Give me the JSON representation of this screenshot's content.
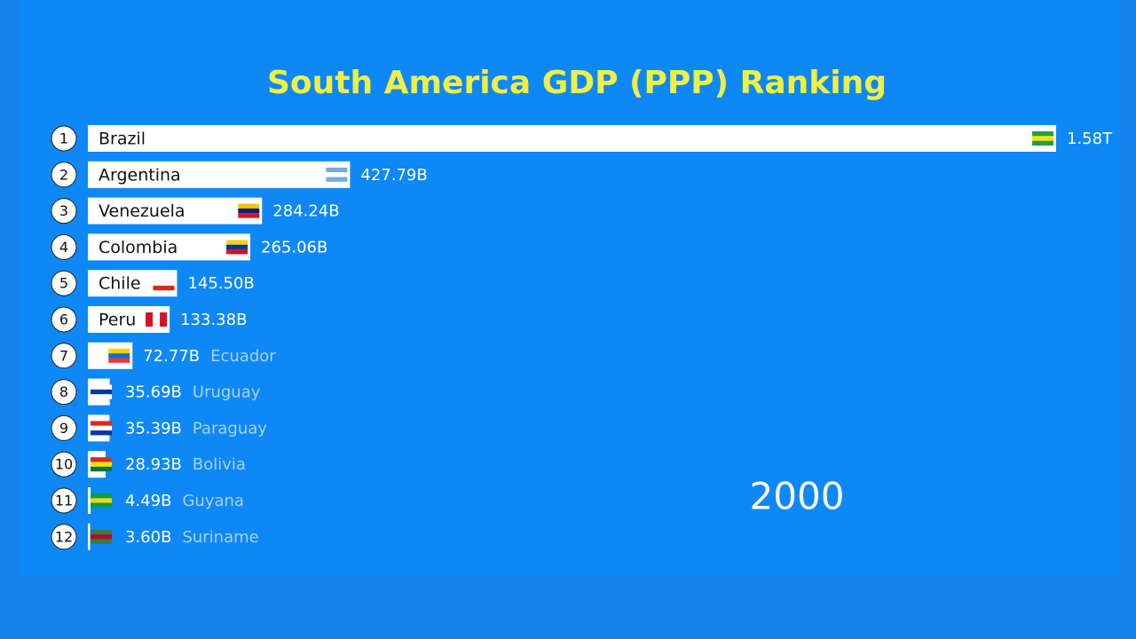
{
  "chart_data": {
    "type": "bar",
    "orientation": "horizontal",
    "title": "South America GDP (PPP) Ranking",
    "categories": [
      "Brazil",
      "Argentina",
      "Venezuela",
      "Colombia",
      "Chile",
      "Peru",
      "Ecuador",
      "Uruguay",
      "Paraguay",
      "Bolivia",
      "Guyana",
      "Suriname"
    ],
    "ranks": [
      1,
      2,
      3,
      4,
      5,
      6,
      7,
      8,
      9,
      10,
      11,
      12
    ],
    "values": [
      1580,
      427.79,
      284.24,
      265.06,
      145.5,
      133.38,
      72.77,
      35.69,
      35.39,
      28.93,
      4.49,
      3.6
    ],
    "value_labels": [
      "1.58T",
      "427.79B",
      "284.24B",
      "265.06B",
      "145.50B",
      "133.38B",
      "72.77B",
      "35.69B",
      "35.39B",
      "28.93B",
      "4.49B",
      "3.60B"
    ],
    "color": "#ffffff",
    "annotation": "2000"
  }
}
